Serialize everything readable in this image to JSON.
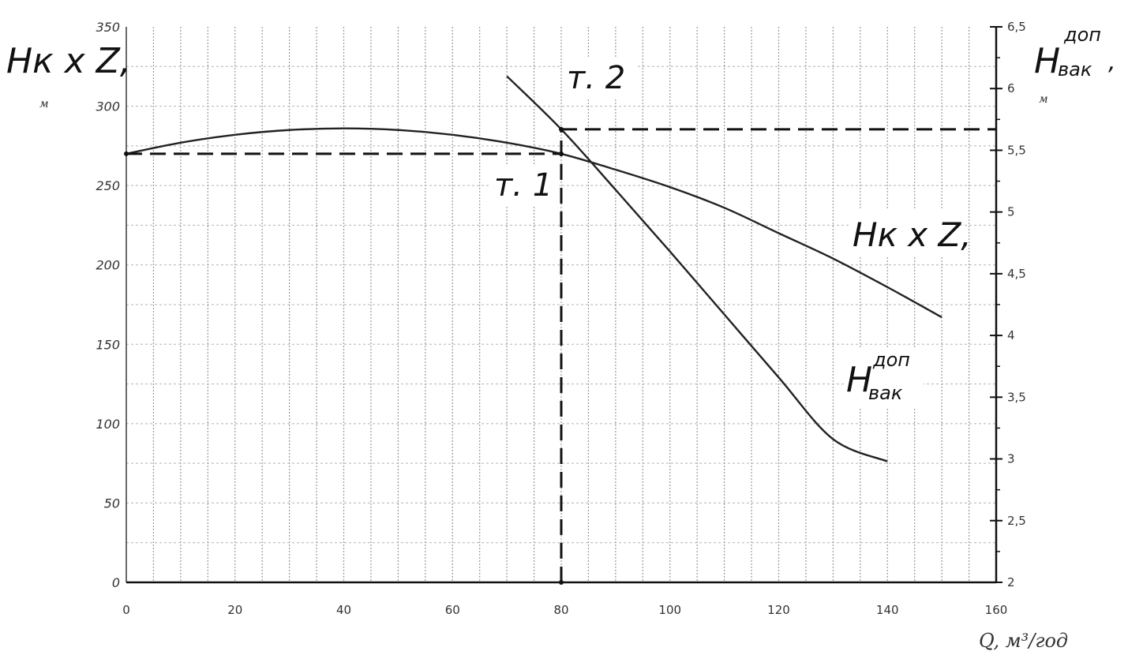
{
  "chart_data": {
    "type": "line",
    "x_label_text": "Q, м³/год",
    "left_axis": {
      "label_main": "Hк x Z,",
      "label_unit": "м",
      "range": [
        0,
        350
      ],
      "ticks": [
        "0",
        "50",
        "100",
        "150",
        "200",
        "250",
        "300",
        "350"
      ]
    },
    "right_axis": {
      "label_main": "H",
      "label_sup": "доп",
      "label_sub": "вак",
      "label_comma": ",",
      "label_unit": "м",
      "range": [
        2,
        6.5
      ],
      "ticks": [
        "2",
        "2,5",
        "3",
        "3,5",
        "4",
        "4,5",
        "5",
        "5,5",
        "6",
        "6,5"
      ]
    },
    "x_axis": {
      "range": [
        0,
        160
      ],
      "ticks": [
        "0",
        "20",
        "40",
        "60",
        "80",
        "100",
        "120",
        "140",
        "160"
      ]
    },
    "series": [
      {
        "label_main": "Hк x Z,",
        "axis": "left",
        "x": [
          0,
          10,
          20,
          30,
          40,
          50,
          60,
          70,
          80,
          90,
          100,
          110,
          120,
          130,
          140,
          150
        ],
        "y": [
          270,
          277,
          282,
          285,
          286,
          285,
          282,
          277,
          270,
          260,
          249,
          236,
          220,
          204,
          186,
          167
        ]
      },
      {
        "label_main": "H",
        "label_sup": "доп",
        "label_sub": "вак",
        "axis": "right",
        "x": [
          70,
          80,
          90,
          100,
          110,
          120,
          130,
          140
        ],
        "y": [
          6.1,
          5.67,
          5.18,
          4.68,
          4.17,
          3.66,
          3.16,
          2.98
        ]
      }
    ],
    "annotations": [
      {
        "label": "т. 1",
        "x": 80,
        "y_left": 270
      },
      {
        "label": "т. 2",
        "x": 80,
        "y_right": 5.67
      }
    ],
    "grid": true
  }
}
